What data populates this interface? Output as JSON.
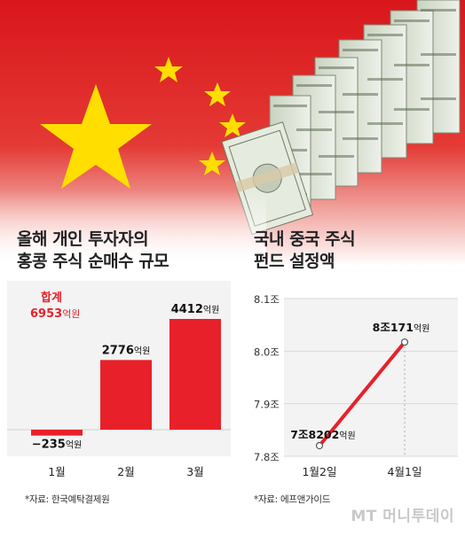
{
  "left_panel": {
    "title_line1": "올해 개인 투자자의",
    "title_line2": "홍콩 주식 순매수 규모",
    "total_label": "합계",
    "total_value": "6953",
    "total_unit": "억원",
    "source": "*자료: 한국예탁결제원"
  },
  "right_panel": {
    "title_line1": "국내 중국 주식",
    "title_line2": "펀드 설정액",
    "source": "*자료: 에프앤가이드"
  },
  "brand": "MT 머니투데이",
  "colors": {
    "accent": "#e8202a",
    "flag_red": "#de2910",
    "flag_star": "#ffde00"
  },
  "chart_data": [
    {
      "type": "bar",
      "categories": [
        "1월",
        "2월",
        "3월"
      ],
      "values": [
        -235,
        2776,
        4412
      ],
      "value_labels": [
        "−235억원",
        "2776억원",
        "4412억원"
      ],
      "unit": "억원",
      "title": "올해 개인 투자자의 홍콩 주식 순매수 규모",
      "annotation": "합계 6953억원"
    },
    {
      "type": "line",
      "x": [
        "1월2일",
        "4월1일"
      ],
      "y": [
        7.8202,
        8.0171
      ],
      "value_labels": [
        "7조8202억원",
        "8조171억원"
      ],
      "yticks": [
        "8.1조",
        "8.0조",
        "7.9조",
        "7.8조"
      ],
      "ytick_values": [
        8.1,
        8.0,
        7.9,
        7.8
      ],
      "ylim": [
        7.8,
        8.1
      ],
      "title": "국내 중국 주식 펀드 설정액"
    }
  ]
}
